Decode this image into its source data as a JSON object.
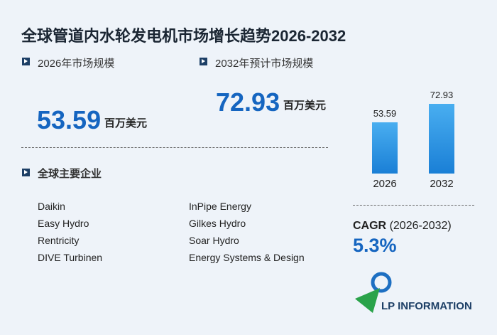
{
  "title": "全球管道内水轮发电机市场增长趋势2026-2032",
  "market_2026": {
    "label": "2026年市场规模",
    "value": 53.59,
    "unit": "百万美元"
  },
  "market_2032": {
    "label": "2032年预计市场规模",
    "value": 72.93,
    "unit": "百万美元"
  },
  "companies": {
    "title": "全球主要企业",
    "list": [
      "Daikin",
      "InPipe Energy",
      "Easy Hydro",
      "Gilkes Hydro",
      "Rentricity",
      "Soar Hydro",
      "DIVE Turbinen",
      "Energy Systems & Design"
    ]
  },
  "chart_data": {
    "type": "bar",
    "categories": [
      "2026",
      "2032"
    ],
    "values": [
      53.59,
      72.93
    ],
    "color": "#1a7fd6"
  },
  "cagr": {
    "label": "CAGR",
    "period": "(2026-2032)",
    "value": "5.3%"
  },
  "logo": "LP INFORMATION"
}
